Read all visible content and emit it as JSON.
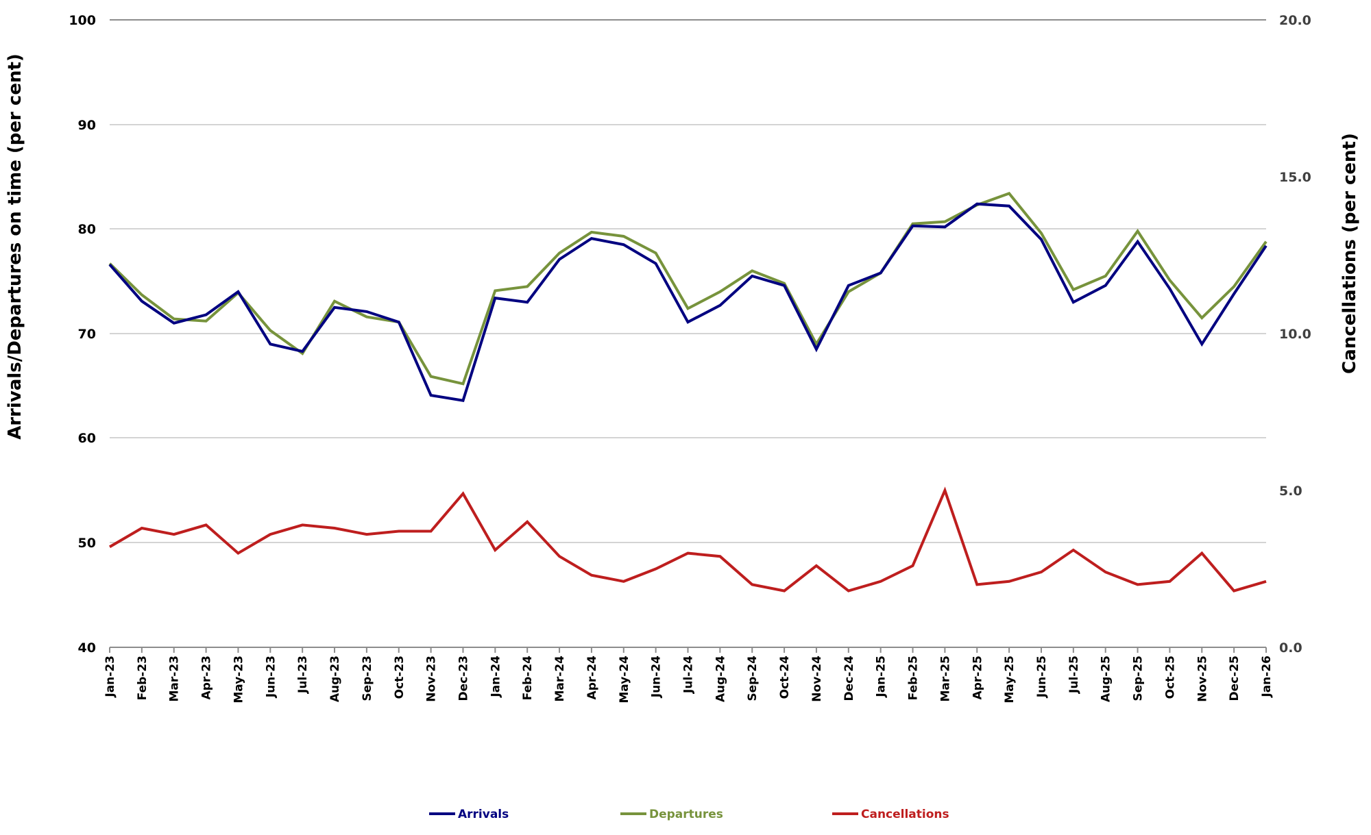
{
  "chart_data": {
    "type": "line",
    "title": "",
    "xlabel": "",
    "ylabel": "Arrivals/Departures on time (per cent)",
    "ylabel_right": "Cancellations (per cent)",
    "ylim": [
      40,
      100
    ],
    "ylim_right": [
      0,
      20
    ],
    "yticks": [
      40,
      50,
      60,
      70,
      80,
      90,
      100
    ],
    "yticks_right": [
      "0.0",
      "5.0",
      "10.0",
      "15.0",
      "20.0"
    ],
    "grid": true,
    "legend_position": "bottom",
    "categories": [
      "Jan-23",
      "Feb-23",
      "Mar-23",
      "Apr-23",
      "May-23",
      "Jun-23",
      "Jul-23",
      "Aug-23",
      "Sep-23",
      "Oct-23",
      "Nov-23",
      "Dec-23",
      "Jan-24",
      "Feb-24",
      "Mar-24",
      "Apr-24",
      "May-24",
      "Jun-24",
      "Jul-24",
      "Aug-24",
      "Sep-24",
      "Oct-24",
      "Nov-24",
      "Dec-24",
      "Jan-25",
      "Feb-25",
      "Mar-25",
      "Apr-25",
      "May-25",
      "Jun-25",
      "Jul-25",
      "Aug-25",
      "Sep-25",
      "Oct-25",
      "Nov-25",
      "Dec-25",
      "Jan-26"
    ],
    "series": [
      {
        "name": "Arrivals",
        "axis": "left",
        "color": "#000080",
        "values": [
          76.6,
          73.1,
          71.0,
          71.8,
          74.0,
          69.0,
          68.3,
          72.5,
          72.1,
          71.1,
          64.1,
          63.6,
          73.4,
          73.0,
          77.1,
          79.1,
          78.5,
          76.7,
          71.1,
          72.7,
          75.5,
          74.6,
          68.5,
          74.6,
          75.8,
          80.3,
          80.2,
          82.4,
          82.2,
          79.0,
          73.0,
          74.6,
          78.8,
          74.3,
          69.0,
          73.8,
          78.4
        ]
      },
      {
        "name": "Departures",
        "axis": "left",
        "color": "#77933C",
        "values": [
          76.7,
          73.7,
          71.4,
          71.2,
          73.9,
          70.3,
          68.1,
          73.1,
          71.6,
          71.1,
          65.9,
          65.2,
          74.1,
          74.5,
          77.7,
          79.7,
          79.3,
          77.7,
          72.4,
          74.0,
          76.0,
          74.8,
          69.0,
          74.0,
          75.8,
          80.5,
          80.7,
          82.3,
          83.4,
          79.6,
          74.2,
          75.5,
          79.8,
          75.1,
          71.5,
          74.5,
          78.8
        ]
      },
      {
        "name": "Cancellations",
        "axis": "right",
        "color": "#BE1E1E",
        "values": [
          3.2,
          3.8,
          3.6,
          3.9,
          3.0,
          3.6,
          3.9,
          3.8,
          3.6,
          3.7,
          3.7,
          4.9,
          3.1,
          4.0,
          2.9,
          2.3,
          2.1,
          2.5,
          3.0,
          2.9,
          2.0,
          1.8,
          2.6,
          1.8,
          2.1,
          2.6,
          5.0,
          2.0,
          2.1,
          2.4,
          3.1,
          2.4,
          2.0,
          2.1,
          3.0,
          1.8,
          2.1
        ]
      }
    ]
  },
  "legend": {
    "arrivals": "Arrivals",
    "departures": "Departures",
    "cancellations": "Cancellations"
  },
  "axes": {
    "left_title": "Arrivals/Departures on time (per cent)",
    "right_title": "Cancellations (per cent)",
    "left_ticks": [
      "100",
      "90",
      "80",
      "70",
      "60",
      "50",
      "40"
    ],
    "right_ticks": [
      "20.0",
      "15.0",
      "10.0",
      "5.0",
      "0.0"
    ]
  },
  "colors": {
    "arrivals": "#000080",
    "departures": "#77933C",
    "cancellations": "#BE1E1E",
    "grid": "#D4D4D4",
    "axis": "#8C8C8C",
    "right_tick_text": "#404040"
  }
}
